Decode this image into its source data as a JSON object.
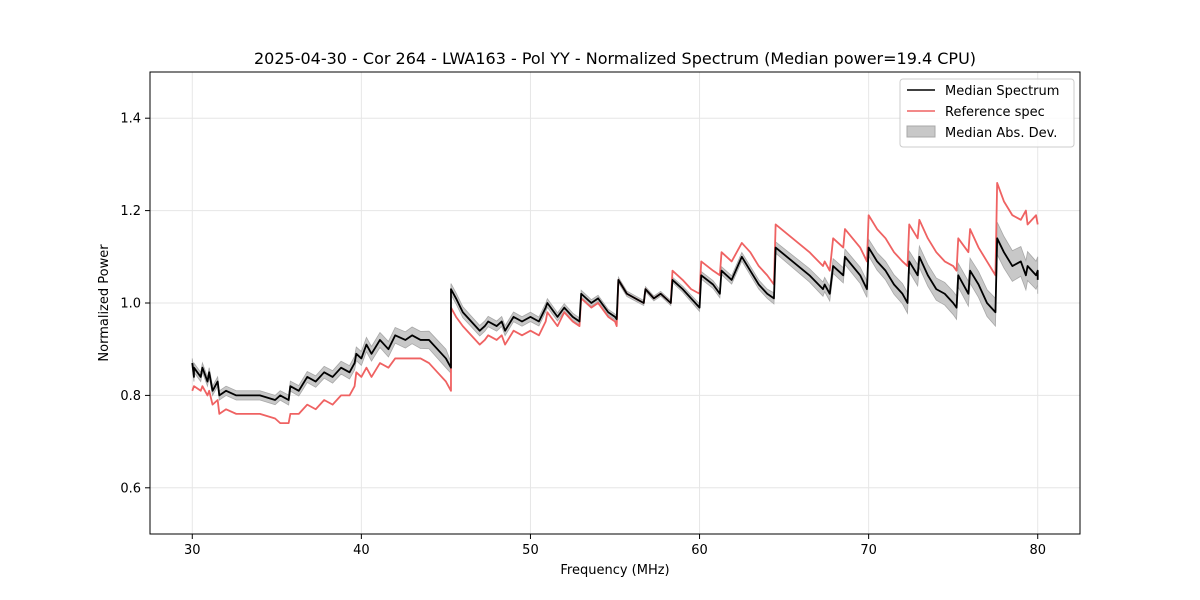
{
  "chart_data": {
    "type": "line",
    "title": "2025-04-30 - Cor 264 - LWA163 - Pol YY - Normalized Spectrum (Median power=19.4 CPU)",
    "xlabel": "Frequency (MHz)",
    "ylabel": "Normalized Power",
    "xlim": [
      27.5,
      82.5
    ],
    "ylim": [
      0.5,
      1.5
    ],
    "x_ticks": [
      30,
      40,
      50,
      60,
      70,
      80
    ],
    "y_ticks": [
      0.6,
      0.8,
      1.0,
      1.2,
      1.4
    ],
    "x_tick_labels": [
      "30",
      "40",
      "50",
      "60",
      "70",
      "80"
    ],
    "y_tick_labels": [
      "0.6",
      "0.8",
      "1.0",
      "1.2",
      "1.4"
    ],
    "grid": true,
    "legend_position": "top-right",
    "legend": {
      "median": "Median Spectrum",
      "reference": "Reference spec",
      "mad": "Median Abs. Dev."
    },
    "colors": {
      "median": "#000000",
      "reference": "#ef6262",
      "mad_fill": "#c8c8c8",
      "mad_edge": "#a8a8a8",
      "grid": "#e6e6e6"
    },
    "series": [
      {
        "name": "Median Spectrum",
        "x": [
          30.0,
          30.1,
          30.1,
          30.5,
          30.6,
          30.9,
          31.0,
          31.2,
          31.5,
          31.6,
          32.0,
          32.6,
          33.0,
          34.0,
          34.9,
          35.2,
          35.7,
          35.8,
          36.3,
          36.8,
          37.3,
          37.8,
          38.3,
          38.8,
          39.3,
          39.6,
          39.7,
          40.0,
          40.3,
          40.6,
          41.1,
          41.6,
          42.0,
          42.6,
          43.0,
          43.5,
          44.0,
          44.5,
          45.0,
          45.3,
          45.3,
          45.6,
          46.0,
          46.5,
          47.0,
          47.3,
          47.5,
          48.0,
          48.3,
          48.5,
          49.0,
          49.5,
          50.0,
          50.5,
          50.9,
          51.0,
          51.6,
          52.0,
          52.5,
          52.9,
          53.0,
          53.6,
          54.0,
          54.6,
          55.0,
          55.1,
          55.2,
          55.7,
          56.2,
          56.7,
          56.8,
          57.3,
          57.7,
          58.0,
          58.3,
          58.4,
          59.0,
          59.5,
          60.0,
          60.1,
          60.8,
          61.2,
          61.3,
          61.9,
          62.5,
          63.0,
          63.5,
          64.0,
          64.4,
          64.5,
          65.5,
          66.5,
          67.3,
          67.4,
          67.7,
          67.9,
          68.5,
          68.6,
          69.5,
          69.9,
          70.0,
          70.5,
          71.0,
          71.5,
          72.0,
          72.3,
          72.4,
          72.9,
          73.0,
          73.5,
          74.0,
          74.5,
          75.0,
          75.2,
          75.3,
          75.9,
          76.0,
          76.5,
          77.0,
          77.5,
          77.6,
          78.0,
          78.5,
          79.0,
          79.3,
          79.4,
          79.9,
          80.0,
          80.0
        ],
        "values": [
          0.87,
          0.84,
          0.86,
          0.84,
          0.86,
          0.83,
          0.85,
          0.81,
          0.83,
          0.8,
          0.81,
          0.8,
          0.8,
          0.8,
          0.79,
          0.8,
          0.79,
          0.82,
          0.81,
          0.84,
          0.83,
          0.85,
          0.84,
          0.86,
          0.85,
          0.87,
          0.89,
          0.88,
          0.91,
          0.89,
          0.92,
          0.9,
          0.93,
          0.92,
          0.93,
          0.92,
          0.92,
          0.9,
          0.88,
          0.86,
          1.03,
          1.01,
          0.98,
          0.96,
          0.94,
          0.95,
          0.96,
          0.95,
          0.96,
          0.94,
          0.97,
          0.96,
          0.97,
          0.96,
          0.99,
          1.0,
          0.97,
          0.99,
          0.97,
          0.96,
          1.02,
          1.0,
          1.01,
          0.98,
          0.97,
          0.965,
          1.05,
          1.02,
          1.01,
          1.0,
          1.03,
          1.01,
          1.02,
          1.01,
          1.0,
          1.05,
          1.03,
          1.01,
          0.99,
          1.06,
          1.04,
          1.02,
          1.07,
          1.05,
          1.1,
          1.07,
          1.04,
          1.02,
          1.01,
          1.12,
          1.09,
          1.06,
          1.03,
          1.04,
          1.02,
          1.08,
          1.06,
          1.1,
          1.06,
          1.03,
          1.12,
          1.09,
          1.07,
          1.04,
          1.02,
          1.0,
          1.09,
          1.06,
          1.1,
          1.06,
          1.03,
          1.02,
          1.0,
          0.99,
          1.06,
          1.02,
          1.07,
          1.04,
          1.0,
          0.98,
          1.14,
          1.11,
          1.08,
          1.09,
          1.06,
          1.08,
          1.06,
          1.07,
          1.05
        ]
      },
      {
        "name": "Reference spec",
        "x": [
          30.0,
          30.1,
          30.5,
          30.6,
          30.9,
          31.0,
          31.2,
          31.5,
          31.6,
          32.0,
          32.6,
          33.0,
          34.0,
          34.9,
          35.2,
          35.7,
          35.8,
          36.3,
          36.8,
          37.3,
          37.8,
          38.3,
          38.8,
          39.3,
          39.6,
          39.7,
          40.0,
          40.3,
          40.6,
          41.1,
          41.6,
          42.0,
          42.6,
          43.0,
          43.5,
          44.0,
          44.5,
          45.0,
          45.3,
          45.3,
          45.6,
          46.0,
          46.5,
          47.0,
          47.3,
          47.5,
          48.0,
          48.3,
          48.5,
          49.0,
          49.5,
          50.0,
          50.5,
          50.9,
          51.0,
          51.6,
          52.0,
          52.5,
          52.9,
          53.0,
          53.6,
          54.0,
          54.6,
          55.0,
          55.1,
          55.2,
          55.7,
          56.2,
          56.7,
          56.8,
          57.3,
          57.7,
          58.0,
          58.3,
          58.4,
          59.0,
          59.5,
          60.0,
          60.1,
          60.8,
          61.2,
          61.3,
          61.9,
          62.5,
          63.0,
          63.5,
          64.0,
          64.4,
          64.5,
          65.5,
          66.5,
          67.3,
          67.4,
          67.7,
          67.9,
          68.5,
          68.6,
          69.5,
          69.9,
          70.0,
          70.5,
          71.0,
          71.5,
          72.0,
          72.3,
          72.4,
          72.9,
          73.0,
          73.5,
          74.0,
          74.5,
          75.0,
          75.2,
          75.3,
          75.9,
          76.0,
          76.5,
          77.0,
          77.5,
          77.6,
          78.0,
          78.5,
          79.0,
          79.3,
          79.4,
          79.9,
          80.0
        ],
        "values": [
          0.81,
          0.82,
          0.81,
          0.82,
          0.8,
          0.81,
          0.78,
          0.79,
          0.76,
          0.77,
          0.76,
          0.76,
          0.76,
          0.75,
          0.74,
          0.74,
          0.76,
          0.76,
          0.78,
          0.77,
          0.79,
          0.78,
          0.8,
          0.8,
          0.82,
          0.85,
          0.84,
          0.86,
          0.84,
          0.87,
          0.86,
          0.88,
          0.88,
          0.88,
          0.88,
          0.87,
          0.85,
          0.83,
          0.81,
          0.99,
          0.97,
          0.95,
          0.93,
          0.91,
          0.92,
          0.93,
          0.92,
          0.93,
          0.91,
          0.94,
          0.93,
          0.94,
          0.93,
          0.96,
          0.98,
          0.95,
          0.98,
          0.96,
          0.95,
          1.01,
          0.99,
          1.0,
          0.97,
          0.96,
          0.95,
          1.05,
          1.02,
          1.01,
          1.0,
          1.03,
          1.01,
          1.02,
          1.01,
          1.0,
          1.07,
          1.05,
          1.03,
          1.02,
          1.09,
          1.07,
          1.06,
          1.11,
          1.09,
          1.13,
          1.11,
          1.08,
          1.06,
          1.04,
          1.17,
          1.14,
          1.11,
          1.08,
          1.09,
          1.07,
          1.14,
          1.12,
          1.16,
          1.12,
          1.09,
          1.19,
          1.16,
          1.14,
          1.11,
          1.09,
          1.08,
          1.17,
          1.14,
          1.18,
          1.14,
          1.11,
          1.09,
          1.08,
          1.07,
          1.14,
          1.11,
          1.16,
          1.12,
          1.09,
          1.06,
          1.26,
          1.22,
          1.19,
          1.18,
          1.2,
          1.17,
          1.19,
          1.17
        ]
      }
    ],
    "mad_band": {
      "name": "Median Abs. Dev.",
      "note": "band spans median ± deviation",
      "x": [
        30.0,
        35.0,
        40.0,
        45.0,
        45.3,
        50.0,
        55.0,
        58.0,
        60.0,
        64.0,
        64.4,
        67.0,
        70.0,
        72.0,
        75.0,
        77.5,
        77.6,
        80.0
      ],
      "deviation": [
        0.01,
        0.01,
        0.015,
        0.02,
        0.012,
        0.01,
        0.006,
        0.005,
        0.008,
        0.01,
        0.012,
        0.015,
        0.018,
        0.022,
        0.025,
        0.03,
        0.035,
        0.03
      ]
    }
  }
}
